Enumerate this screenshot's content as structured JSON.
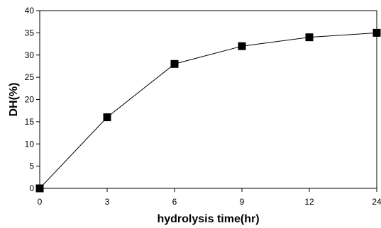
{
  "chart_data": {
    "type": "line",
    "title": "",
    "xlabel": "hydrolysis time(hr)",
    "ylabel": "DH(%)",
    "x_categories": [
      "0",
      "3",
      "6",
      "9",
      "12",
      "24"
    ],
    "y_ticks": [
      0,
      5,
      10,
      15,
      20,
      25,
      30,
      35,
      40
    ],
    "ylim": [
      0,
      40
    ],
    "grid": false,
    "legend": "none",
    "series": [
      {
        "marker": "square",
        "color": "#000000",
        "points": [
          {
            "x": "0",
            "y": 0
          },
          {
            "x": "3",
            "y": 16
          },
          {
            "x": "6",
            "y": 28
          },
          {
            "x": "9",
            "y": 32
          },
          {
            "x": "12",
            "y": 34
          },
          {
            "x": "24",
            "y": 35
          }
        ]
      }
    ]
  }
}
